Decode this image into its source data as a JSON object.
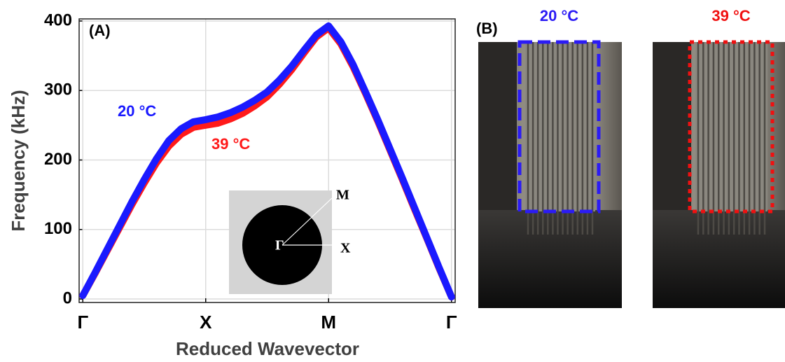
{
  "chart_data": {
    "type": "line",
    "panel_label": "(A)",
    "x_label": "Reduced Wavevector",
    "y_label": "Frequency (kHz)",
    "x": [
      0,
      0.1,
      0.2,
      0.3,
      0.4,
      0.5,
      0.6,
      0.7,
      0.8,
      0.9,
      1.0,
      1.1,
      1.2,
      1.3,
      1.4,
      1.5,
      1.6,
      1.7,
      1.8,
      1.9,
      2.0,
      2.1,
      2.2,
      2.3,
      2.4,
      2.5,
      2.6,
      2.7,
      2.8,
      2.9,
      3.0
    ],
    "series": [
      {
        "name": "20 °C",
        "color": "#1a1aff",
        "values": [
          5,
          38,
          72,
          106,
          140,
          172,
          202,
          228,
          245,
          255,
          258,
          262,
          268,
          276,
          286,
          298,
          315,
          335,
          358,
          380,
          393,
          370,
          337,
          298,
          258,
          216,
          174,
          131,
          88,
          45,
          3
        ]
      },
      {
        "name": "39 °C",
        "color": "#ff1a1a",
        "values": [
          5,
          37,
          70,
          103,
          136,
          167,
          196,
          220,
          237,
          247,
          250,
          253,
          259,
          267,
          278,
          291,
          309,
          330,
          354,
          377,
          390,
          367,
          334,
          296,
          256,
          214,
          172,
          129,
          87,
          44,
          3
        ]
      }
    ],
    "xlim": [
      -0.03,
      3.03
    ],
    "xticks": [
      {
        "value": 0,
        "label": "Γ"
      },
      {
        "value": 1,
        "label": "X"
      },
      {
        "value": 2,
        "label": "M"
      },
      {
        "value": 3,
        "label": "Γ"
      }
    ],
    "ylim": [
      -5,
      403
    ],
    "yticks": [
      0,
      100,
      200,
      300,
      400
    ],
    "grid": true,
    "inset": {
      "center": "Γ",
      "m": "M",
      "x": "X"
    }
  },
  "panel_b": {
    "label": "(B)",
    "photos": [
      {
        "label": "20 °C",
        "color": "#2b1bf5"
      },
      {
        "label": "39 °C",
        "color": "#f01010"
      }
    ]
  }
}
